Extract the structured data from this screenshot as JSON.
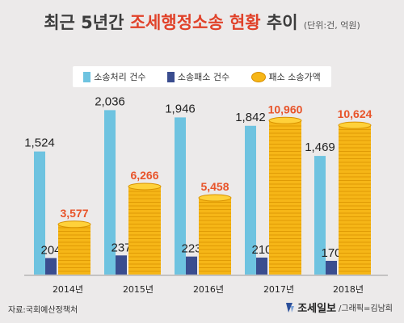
{
  "title": {
    "part1": "최근 5년간 ",
    "highlight": "조세행정소송 현황",
    "part2": " 추이",
    "unit": "(단위:건, 억원)"
  },
  "source": "자료:국회예산정책처",
  "credit": {
    "brand": "조세일보",
    "artist": "/그래픽=김남희"
  },
  "colors": {
    "filed": "#6ec3e0",
    "lost": "#3a4d8f",
    "coin": "#f6b617",
    "amount_label": "#e8542a"
  },
  "chart_data": {
    "type": "bar",
    "categories": [
      "2014년",
      "2015년",
      "2016년",
      "2017년",
      "2018년"
    ],
    "series": [
      {
        "name": "소송처리 건수",
        "values": [
          1524,
          2036,
          1946,
          1842,
          1469
        ],
        "labels": [
          "1,524",
          "2,036",
          "1,946",
          "1,842",
          "1,469"
        ]
      },
      {
        "name": "소송패소 건수",
        "values": [
          204,
          237,
          223,
          210,
          170
        ],
        "labels": [
          "204",
          "237",
          "223",
          "210",
          "170"
        ]
      },
      {
        "name": "패소 소송가액",
        "values": [
          3577,
          6266,
          5458,
          10960,
          10624
        ],
        "labels": [
          "3,577",
          "6,266",
          "5,458",
          "10,960",
          "10,624"
        ]
      }
    ]
  }
}
